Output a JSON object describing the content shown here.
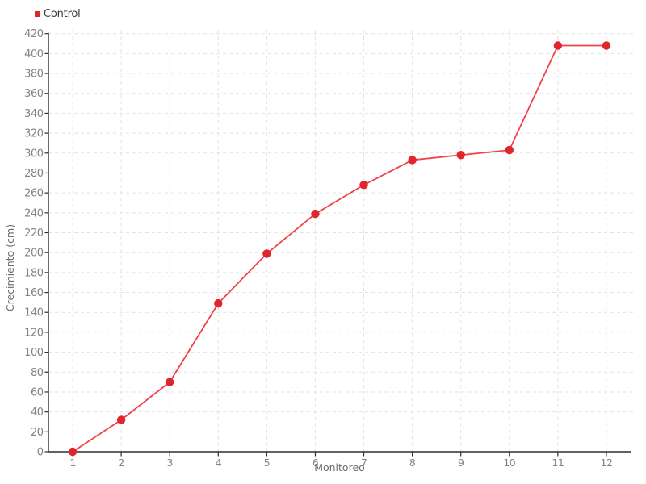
{
  "page": {
    "background": "#ffffff"
  },
  "legend": {
    "items": [
      {
        "label": "Control",
        "color": "#e0262c"
      }
    ]
  },
  "chart_data": {
    "type": "line",
    "title": "",
    "xlabel": "Monitoreo",
    "ylabel": "Crecimiento (cm)",
    "x": [
      1,
      2,
      3,
      4,
      5,
      6,
      7,
      8,
      9,
      10,
      11,
      12
    ],
    "series": [
      {
        "name": "Control",
        "values": [
          0,
          32,
          70,
          149,
          199,
          239,
          268,
          293,
          298,
          303,
          408,
          408
        ],
        "color": "#e0262c",
        "line_color": "#ef4249",
        "marker": "circle"
      }
    ],
    "ylim": [
      0,
      420
    ],
    "ytick_step": 20,
    "x_padding": 0.5,
    "grid": {
      "horizontal": true,
      "vertical": true,
      "style": "dashed",
      "color": "#e2e2e2"
    },
    "legend_position": "top-left",
    "colors": {
      "axis": "#2e2e2e",
      "tick_label": "#848484",
      "axis_title": "#6b6b6b",
      "legend_text": "#383838"
    }
  }
}
